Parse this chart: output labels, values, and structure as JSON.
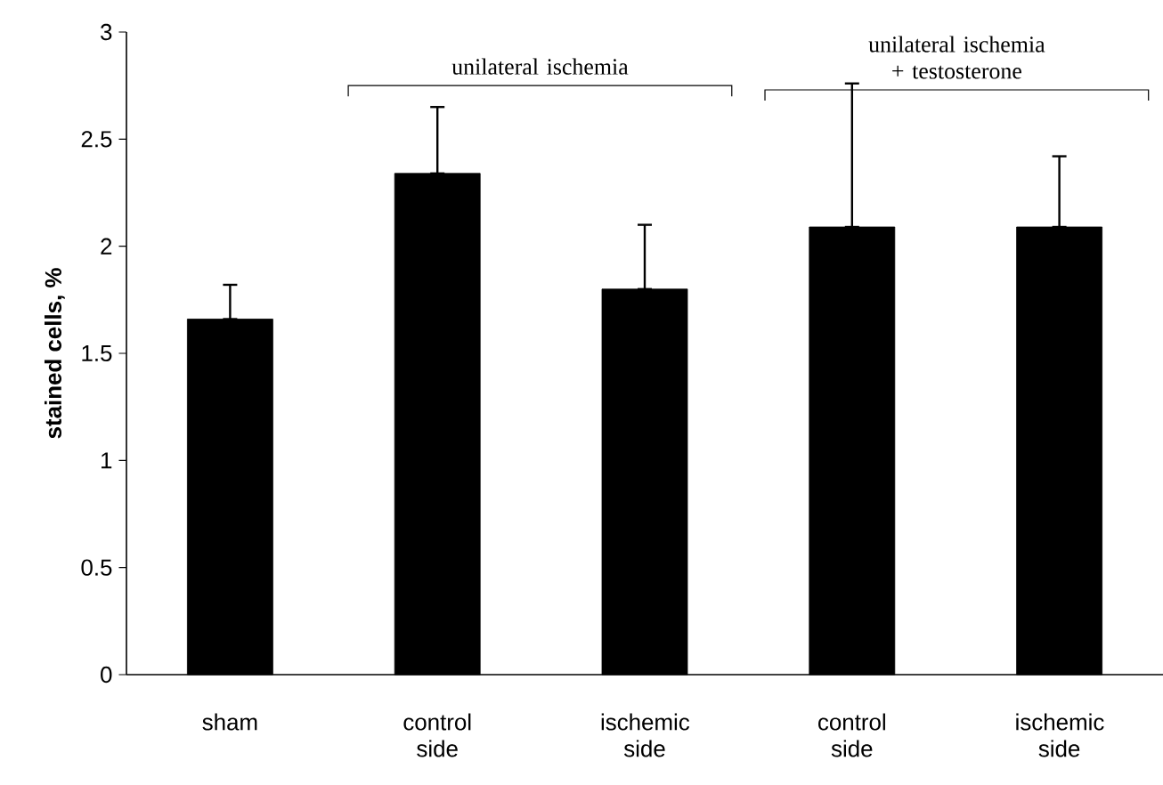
{
  "chart_data": {
    "type": "bar",
    "categories": [
      "sham",
      "control side",
      "ischemic side",
      "control side",
      "ischemic side"
    ],
    "values": [
      1.66,
      2.34,
      1.8,
      2.09,
      2.09
    ],
    "errors": [
      [
        1.66,
        1.82
      ],
      [
        2.34,
        2.65
      ],
      [
        1.8,
        2.1
      ],
      [
        2.09,
        2.76
      ],
      [
        2.09,
        2.42
      ]
    ],
    "color": "#000000",
    "ylabel": "stained cells, %",
    "ylim": [
      0,
      3
    ],
    "yticks": [
      0,
      0.5,
      1,
      1.5,
      2,
      2.5,
      3
    ],
    "annotations": [
      "unilateral ischemia",
      "unilateral ischemia + testosterone"
    ],
    "grid": false
  }
}
